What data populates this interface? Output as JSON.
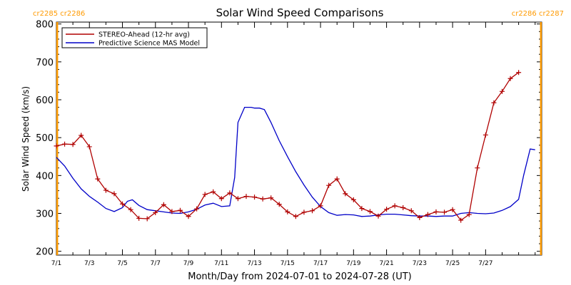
{
  "chart_data": {
    "type": "line",
    "title": "Solar Wind Speed Comparisons",
    "xlabel": "Month/Day from 2024-07-01 to 2024-07-28 (UT)",
    "ylabel": "Solar Wind Speed (km/s)",
    "xlim": [
      1,
      30.4
    ],
    "ylim": [
      190,
      805
    ],
    "x_ticks": [
      1,
      3,
      5,
      7,
      9,
      11,
      13,
      15,
      17,
      19,
      21,
      23,
      25,
      27
    ],
    "x_tick_labels": [
      "7/1",
      "7/3",
      "7/5",
      "7/7",
      "7/9",
      "7/11",
      "7/13",
      "7/15",
      "7/17",
      "7/19",
      "7/21",
      "7/23",
      "7/25",
      "7/27"
    ],
    "y_ticks": [
      200,
      300,
      400,
      500,
      600,
      700,
      800
    ],
    "y_tick_labels": [
      "200",
      "300",
      "400",
      "500",
      "600",
      "700",
      "800"
    ],
    "legend_position": "top-left",
    "series": [
      {
        "name": "STEREO-Ahead (12-hr avg)",
        "color": "#b00000",
        "markers": true,
        "x": [
          1.0,
          1.5,
          2.0,
          2.5,
          3.0,
          3.5,
          4.0,
          4.5,
          5.0,
          5.5,
          6.0,
          6.5,
          7.0,
          7.5,
          8.0,
          8.5,
          9.0,
          9.5,
          10.0,
          10.5,
          11.0,
          11.5,
          12.0,
          12.5,
          13.0,
          13.5,
          14.0,
          14.5,
          15.0,
          15.5,
          16.0,
          16.5,
          17.0,
          17.5,
          18.0,
          18.5,
          19.0,
          19.5,
          20.0,
          20.5,
          21.0,
          21.5,
          22.0,
          22.5,
          23.0,
          23.5,
          24.0,
          24.5,
          25.0,
          25.5,
          26.0,
          26.5,
          27.0,
          27.5,
          28.0,
          28.5,
          29.0
        ],
        "y": [
          478,
          483,
          482,
          506,
          476,
          391,
          361,
          352,
          325,
          310,
          287,
          286,
          302,
          323,
          305,
          308,
          292,
          312,
          350,
          357,
          339,
          354,
          339,
          345,
          343,
          338,
          341,
          324,
          304,
          292,
          303,
          307,
          320,
          374,
          391,
          352,
          336,
          313,
          305,
          293,
          311,
          320,
          315,
          307,
          289,
          297,
          304,
          303,
          310,
          282,
          297,
          420,
          507,
          592,
          622,
          656,
          672
        ]
      },
      {
        "name": "Predictive Science MAS Model",
        "color": "#0000c8",
        "markers": false,
        "x": [
          1.0,
          1.5,
          2.0,
          2.5,
          3.0,
          3.5,
          4.0,
          4.5,
          5.0,
          5.3,
          5.6,
          6.0,
          6.5,
          7.0,
          7.5,
          8.0,
          8.5,
          9.0,
          9.5,
          10.0,
          10.5,
          11.0,
          11.5,
          11.8,
          12.0,
          12.4,
          12.8,
          13.0,
          13.3,
          13.6,
          14.0,
          14.5,
          15.0,
          15.5,
          16.0,
          16.5,
          17.0,
          17.5,
          18.0,
          18.5,
          19.0,
          19.5,
          20.0,
          20.5,
          21.0,
          21.5,
          22.0,
          22.5,
          23.0,
          23.5,
          24.0,
          24.5,
          25.0,
          25.5,
          26.0,
          26.5,
          27.0,
          27.5,
          28.0,
          28.5,
          29.0,
          29.3,
          29.7,
          30.0
        ],
        "y": [
          448,
          425,
          393,
          365,
          345,
          330,
          313,
          305,
          315,
          332,
          336,
          321,
          310,
          307,
          304,
          301,
          300,
          304,
          311,
          322,
          327,
          318,
          320,
          395,
          540,
          580,
          580,
          578,
          578,
          574,
          540,
          492,
          450,
          410,
          375,
          343,
          318,
          302,
          295,
          297,
          296,
          292,
          293,
          296,
          298,
          298,
          296,
          294,
          293,
          293,
          292,
          293,
          293,
          300,
          302,
          300,
          299,
          301,
          308,
          318,
          337,
          400,
          470,
          468
        ]
      }
    ],
    "carrington": {
      "left": "cr2285 cr2286",
      "right": "cr2286 cr2287",
      "color": "#ff9a00",
      "line_x": [
        1.05,
        30.35
      ]
    }
  }
}
